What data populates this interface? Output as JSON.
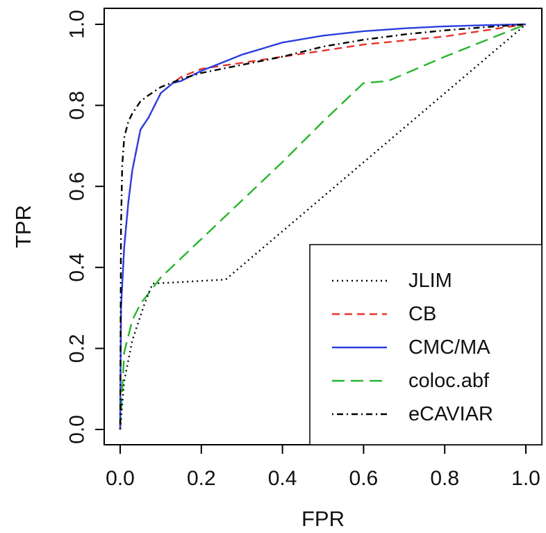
{
  "chart_data": {
    "type": "line",
    "xlabel": "FPR",
    "ylabel": "TPR",
    "xlim": [
      0,
      1
    ],
    "ylim": [
      0,
      1
    ],
    "xticks": [
      0.0,
      0.2,
      0.4,
      0.6,
      0.8,
      1.0
    ],
    "yticks": [
      0.0,
      0.2,
      0.4,
      0.6,
      0.8,
      1.0
    ],
    "tick_labels": [
      "0.0",
      "0.2",
      "0.4",
      "0.6",
      "0.8",
      "1.0"
    ],
    "grid": false,
    "legend_position": "bottom-right",
    "series": [
      {
        "name": "JLIM",
        "color": "#000000",
        "dash": "dotted",
        "x": [
          0.0,
          0.01,
          0.03,
          0.06,
          0.08,
          0.26,
          1.0
        ],
        "y": [
          0.0,
          0.12,
          0.22,
          0.31,
          0.36,
          0.37,
          1.0
        ]
      },
      {
        "name": "CB",
        "color": "#e8322b",
        "dash": "dashed",
        "x": [
          0.0,
          0.002,
          0.01,
          0.02,
          0.03,
          0.05,
          0.07,
          0.1,
          0.13,
          0.15,
          0.2,
          0.3,
          0.4,
          0.5,
          0.6,
          0.7,
          0.8,
          0.9,
          1.0
        ],
        "y": [
          0.0,
          0.3,
          0.45,
          0.56,
          0.64,
          0.74,
          0.77,
          0.83,
          0.855,
          0.87,
          0.89,
          0.905,
          0.92,
          0.935,
          0.95,
          0.96,
          0.97,
          0.985,
          1.0
        ]
      },
      {
        "name": "CMC/MA",
        "color": "#2b3fe0",
        "dash": "solid",
        "x": [
          0.0,
          0.002,
          0.01,
          0.02,
          0.03,
          0.05,
          0.07,
          0.1,
          0.13,
          0.15,
          0.2,
          0.3,
          0.4,
          0.5,
          0.6,
          0.7,
          0.8,
          0.9,
          1.0
        ],
        "y": [
          0.0,
          0.3,
          0.45,
          0.56,
          0.64,
          0.74,
          0.77,
          0.83,
          0.855,
          0.86,
          0.885,
          0.925,
          0.955,
          0.972,
          0.983,
          0.99,
          0.995,
          0.998,
          1.0
        ]
      },
      {
        "name": "coloc.abf",
        "color": "#27b52b",
        "dash": "longdash",
        "x": [
          0.0,
          0.01,
          0.03,
          0.05,
          0.1,
          0.2,
          0.3,
          0.4,
          0.5,
          0.6,
          0.66,
          0.8,
          1.0
        ],
        "y": [
          0.0,
          0.19,
          0.27,
          0.31,
          0.375,
          0.47,
          0.565,
          0.66,
          0.76,
          0.855,
          0.86,
          0.92,
          1.0
        ]
      },
      {
        "name": "eCAVIAR",
        "color": "#000000",
        "dash": "dotdash",
        "x": [
          0.0,
          0.002,
          0.005,
          0.01,
          0.02,
          0.03,
          0.05,
          0.07,
          0.1,
          0.15,
          0.2,
          0.3,
          0.4,
          0.5,
          0.6,
          0.7,
          0.8,
          0.9,
          1.0
        ],
        "y": [
          0.0,
          0.5,
          0.65,
          0.72,
          0.76,
          0.78,
          0.81,
          0.825,
          0.845,
          0.865,
          0.88,
          0.9,
          0.92,
          0.945,
          0.962,
          0.975,
          0.985,
          0.993,
          1.0
        ]
      }
    ]
  }
}
